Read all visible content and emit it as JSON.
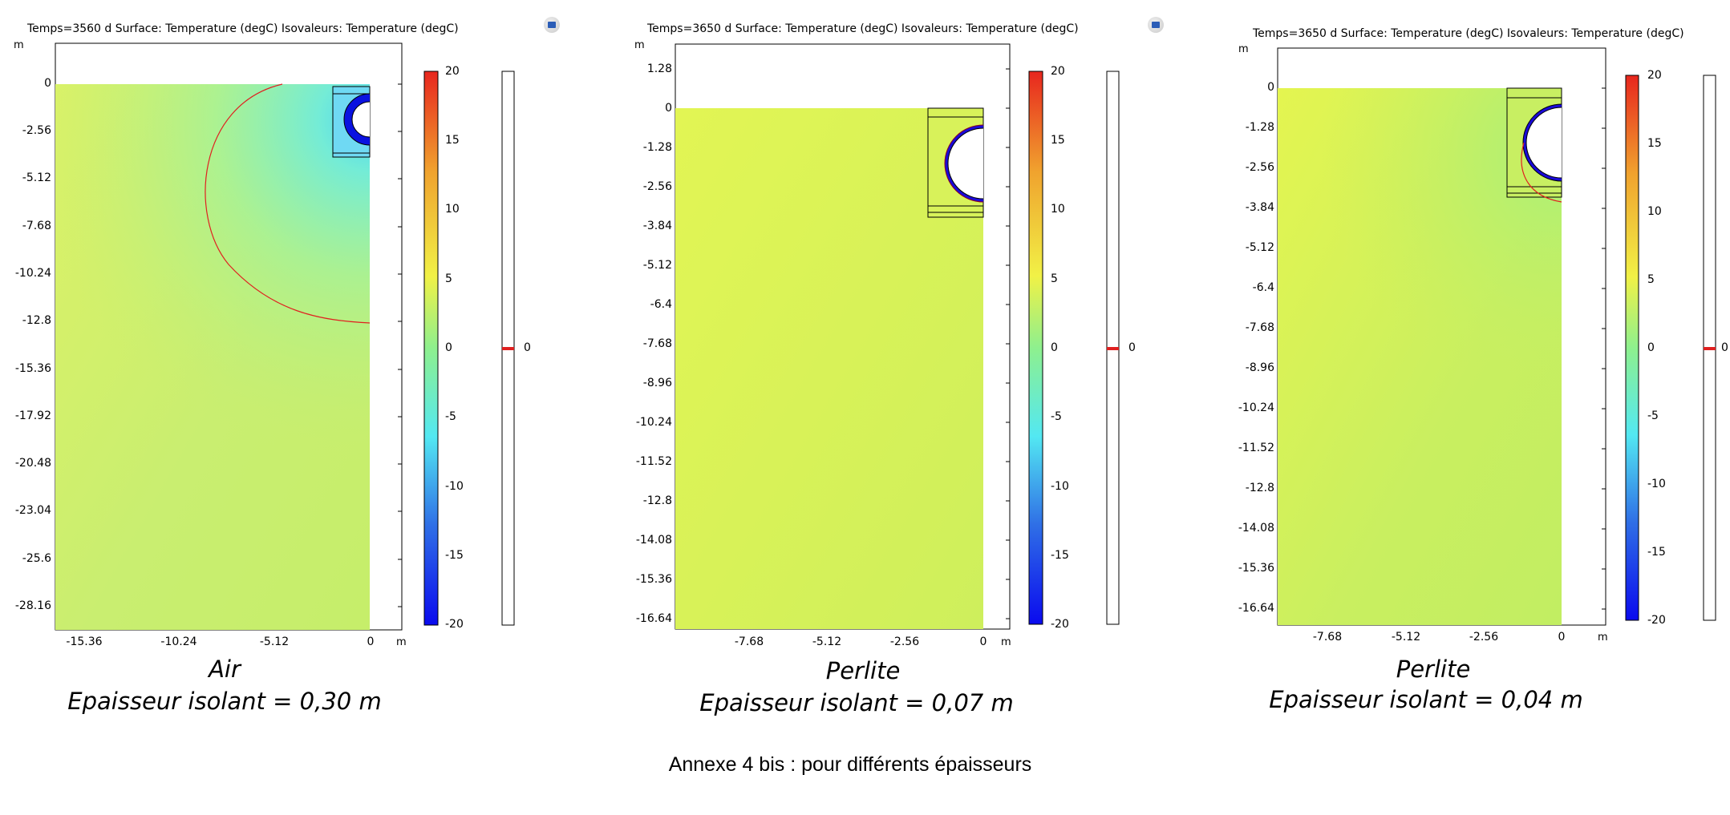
{
  "plots": [
    {
      "title": "Temps=3560 d   Surface: Temperature (degC)   Isovaleurs: Temperature (degC)",
      "y_unit": "m",
      "x_unit": "m",
      "y_ticks": [
        "0",
        "-2.56",
        "-5.12",
        "-7.68",
        "-10.24",
        "-12.8",
        "-15.36",
        "-17.92",
        "-20.48",
        "-23.04",
        "-25.6",
        "-28.16"
      ],
      "x_ticks": [
        "-15.36",
        "-10.24",
        "-5.12",
        "0"
      ],
      "colorbar_ticks": [
        "20",
        "15",
        "10",
        "5",
        "0",
        "-5",
        "-10",
        "-15",
        "-20"
      ],
      "iso_value": "0",
      "material": "Air",
      "thickness_label": "Epaisseur isolant = 0,30 m"
    },
    {
      "title": "Temps=3650 d   Surface: Temperature (degC)   Isovaleurs: Temperature (degC)",
      "y_unit": "m",
      "x_unit": "m",
      "y_ticks": [
        "1.28",
        "0",
        "-1.28",
        "-2.56",
        "-3.84",
        "-5.12",
        "-6.4",
        "-7.68",
        "-8.96",
        "-10.24",
        "-11.52",
        "-12.8",
        "-14.08",
        "-15.36",
        "-16.64"
      ],
      "x_ticks": [
        "-7.68",
        "-5.12",
        "-2.56",
        "0"
      ],
      "colorbar_ticks": [
        "20",
        "15",
        "10",
        "5",
        "0",
        "-5",
        "-10",
        "-15",
        "-20"
      ],
      "iso_value": "0",
      "material": "Perlite",
      "thickness_label": "Epaisseur isolant = 0,07 m"
    },
    {
      "title": "Temps=3650 d   Surface: Temperature (degC)   Isovaleurs: Temperature (degC)",
      "y_unit": "m",
      "x_unit": "m",
      "y_ticks": [
        "0",
        "-1.28",
        "-2.56",
        "-3.84",
        "-5.12",
        "-6.4",
        "-7.68",
        "-8.96",
        "-10.24",
        "-11.52",
        "-12.8",
        "-14.08",
        "-15.36",
        "-16.64"
      ],
      "x_ticks": [
        "-7.68",
        "-5.12",
        "-2.56",
        "0"
      ],
      "colorbar_ticks": [
        "20",
        "15",
        "10",
        "5",
        "0",
        "-5",
        "-10",
        "-15",
        "-20"
      ],
      "iso_value": "0",
      "material": "Perlite",
      "thickness_label": "Epaisseur isolant = 0,04 m"
    }
  ],
  "colormap": [
    "#0a0aee",
    "#2f6fe6",
    "#53e8f2",
    "#8ef08e",
    "#f1f146",
    "#f0a22e",
    "#e8261e"
  ],
  "iso_color": "#e02020",
  "annexe": "Annexe 4 bis : pour différents épaisseurs"
}
